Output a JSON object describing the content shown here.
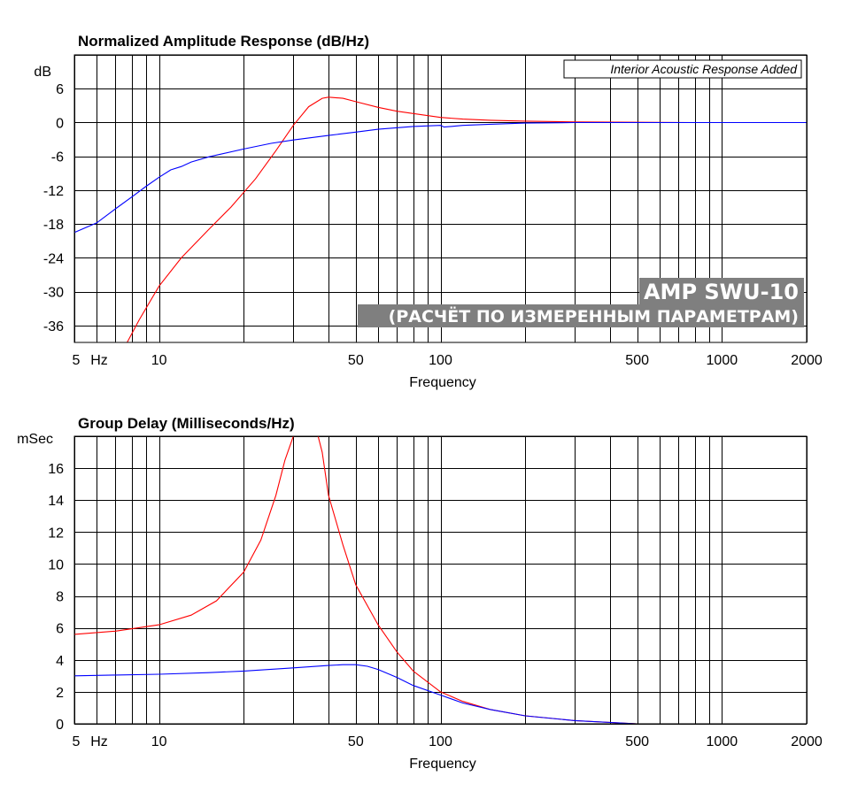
{
  "watermark": {
    "line1": "AMP SWU-10",
    "line2": "(РАСЧЁТ ПО ИЗМЕРЕННЫМ ПАРАМЕТРАМ)",
    "color": "#7f7f7f"
  },
  "chart_data": [
    {
      "type": "line",
      "title": "Normalized Amplitude Response (dB/Hz)",
      "xlabel": "Frequency",
      "ylabel": "dB",
      "x_unit_label": "Hz",
      "x_scale": "log",
      "xlim": [
        5,
        2000
      ],
      "ylim": [
        -39,
        12
      ],
      "x_tick_labels": [
        "5",
        "10",
        "50",
        "100",
        "500",
        "1000",
        "2000"
      ],
      "x_tick_values": [
        5,
        10,
        50,
        100,
        500,
        1000,
        2000
      ],
      "y_ticks": [
        6,
        0,
        -6,
        -12,
        -18,
        -24,
        -30,
        -36
      ],
      "grid": true,
      "annotation": "Interior Acoustic Response Added",
      "series": [
        {
          "color": "#ff0000",
          "x": [
            7.7,
            8.5,
            10,
            12,
            15,
            18,
            22,
            26,
            30,
            34,
            38,
            40,
            45,
            50,
            60,
            70,
            80,
            100,
            120,
            150,
            200,
            300,
            500,
            800
          ],
          "y": [
            -39,
            -35,
            -29,
            -24,
            -19,
            -15,
            -10,
            -5,
            -0.5,
            2.8,
            4.3,
            4.5,
            4.3,
            3.7,
            2.7,
            2.0,
            1.6,
            0.9,
            0.6,
            0.4,
            0.25,
            0.1,
            0.05,
            0
          ]
        },
        {
          "color": "#0000ff",
          "x": [
            5,
            6,
            7,
            8,
            9,
            10,
            11,
            12,
            13,
            15,
            20,
            25,
            30,
            40,
            50,
            60,
            80,
            100,
            103,
            120,
            150,
            200,
            300,
            500,
            1000,
            2000
          ],
          "y": [
            -19.5,
            -17.8,
            -15.3,
            -13.2,
            -11.3,
            -9.7,
            -8.4,
            -7.8,
            -7.0,
            -6.1,
            -4.7,
            -3.7,
            -3.1,
            -2.3,
            -1.7,
            -1.2,
            -0.7,
            -0.5,
            -0.8,
            -0.5,
            -0.3,
            -0.1,
            0,
            0,
            0,
            0
          ]
        }
      ]
    },
    {
      "type": "line",
      "title": "Group Delay (Milliseconds/Hz)",
      "xlabel": "Frequency",
      "ylabel": "mSec",
      "x_unit_label": "Hz",
      "x_scale": "log",
      "xlim": [
        5,
        2000
      ],
      "ylim": [
        0,
        18
      ],
      "x_tick_labels": [
        "5",
        "10",
        "50",
        "100",
        "500",
        "1000",
        "2000"
      ],
      "x_tick_values": [
        5,
        10,
        50,
        100,
        500,
        1000,
        2000
      ],
      "y_ticks": [
        16,
        14,
        12,
        10,
        8,
        6,
        4,
        2,
        0
      ],
      "grid": true,
      "series": [
        {
          "color": "#ff0000",
          "x": [
            5,
            7,
            10,
            13,
            16,
            20,
            23,
            26,
            28,
            30,
            31.5,
            36,
            38,
            40,
            45,
            50,
            60,
            70,
            80,
            100,
            120,
            150,
            200,
            300,
            500
          ],
          "y": [
            5.6,
            5.8,
            6.2,
            6.8,
            7.7,
            9.5,
            11.5,
            14.3,
            16.5,
            18,
            18.6,
            18.6,
            17.0,
            14.3,
            11.2,
            8.7,
            6.2,
            4.5,
            3.3,
            2.0,
            1.4,
            0.9,
            0.5,
            0.2,
            0
          ]
        },
        {
          "color": "#0000ff",
          "x": [
            5,
            7,
            10,
            15,
            20,
            30,
            40,
            45,
            50,
            55,
            60,
            70,
            80,
            100,
            120,
            150,
            200,
            300,
            500
          ],
          "y": [
            3.0,
            3.05,
            3.1,
            3.2,
            3.3,
            3.5,
            3.65,
            3.7,
            3.7,
            3.6,
            3.4,
            2.9,
            2.4,
            1.8,
            1.3,
            0.9,
            0.5,
            0.2,
            0
          ]
        }
      ]
    }
  ]
}
